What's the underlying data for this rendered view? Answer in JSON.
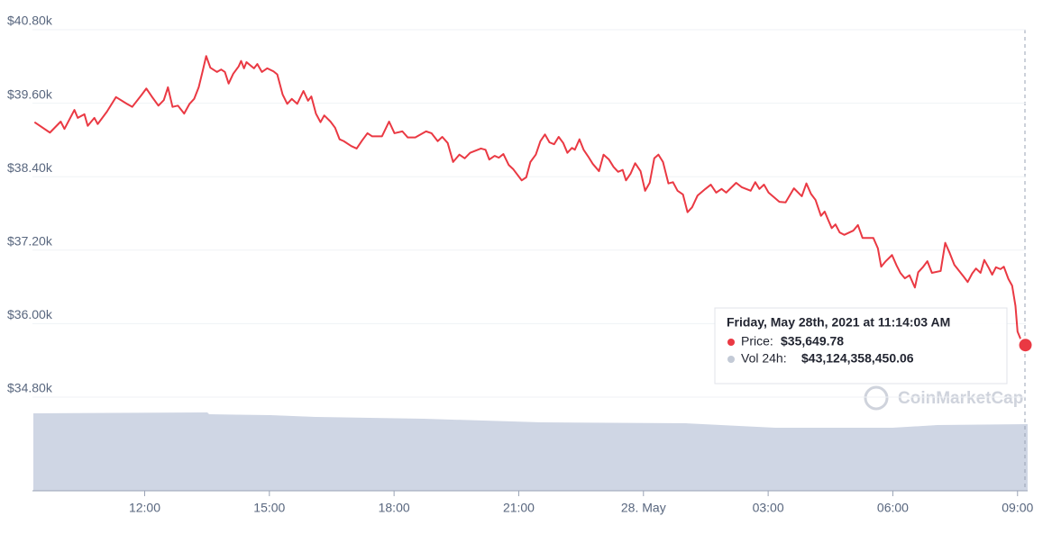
{
  "chart_data": {
    "type": "line",
    "color": "#ea3943",
    "x": [
      9.35,
      9.72,
      9.98,
      10.07,
      10.31,
      10.39,
      10.55,
      10.63,
      10.79,
      10.87,
      11.09,
      11.31,
      11.57,
      11.7,
      11.93,
      12.04,
      12.17,
      12.33,
      12.46,
      12.56,
      12.67,
      12.8,
      12.95,
      13.08,
      13.19,
      13.3,
      13.39,
      13.48,
      13.58,
      13.74,
      13.84,
      13.93,
      14.02,
      14.13,
      14.26,
      14.32,
      14.39,
      14.45,
      14.63,
      14.71,
      14.82,
      14.95,
      15.1,
      15.19,
      15.32,
      15.43,
      15.54,
      15.67,
      15.82,
      15.93,
      16.01,
      16.12,
      16.23,
      16.32,
      16.47,
      16.58,
      16.69,
      16.79,
      16.97,
      17.1,
      17.23,
      17.36,
      17.47,
      17.71,
      17.88,
      18.01,
      18.2,
      18.33,
      18.51,
      18.77,
      18.9,
      19.05,
      19.16,
      19.29,
      19.42,
      19.57,
      19.7,
      19.83,
      20.09,
      20.2,
      20.29,
      20.42,
      20.52,
      20.63,
      20.76,
      20.87,
      21.07,
      21.18,
      21.28,
      21.41,
      21.52,
      21.63,
      21.74,
      21.85,
      21.96,
      22.07,
      22.17,
      22.28,
      22.35,
      22.46,
      22.56,
      22.67,
      22.78,
      22.93,
      23.04,
      23.17,
      23.28,
      23.39,
      23.5,
      23.58,
      23.69,
      23.8,
      23.93,
      24.04,
      24.15,
      24.26,
      24.36,
      24.47,
      24.6,
      24.71,
      24.82,
      24.95,
      25.06,
      25.17,
      25.3,
      25.49,
      25.62,
      25.75,
      25.88,
      25.99,
      26.23,
      26.36,
      26.58,
      26.69,
      26.79,
      26.9,
      27.01,
      27.27,
      27.42,
      27.62,
      27.81,
      27.92,
      28.03,
      28.14,
      28.27,
      28.36,
      28.44,
      28.53,
      28.62,
      28.72,
      28.83,
      29.05,
      29.16,
      29.27,
      29.53,
      29.64,
      29.72,
      29.83,
      29.98,
      30.09,
      30.18,
      30.29,
      30.4,
      30.53,
      30.61,
      30.72,
      30.83,
      30.94,
      31.15,
      31.26,
      31.37,
      31.48,
      31.7,
      31.8,
      31.91,
      32.0,
      32.11,
      32.2,
      32.3,
      32.39,
      32.48,
      32.59,
      32.67,
      32.78,
      32.87,
      32.95,
      33.0,
      33.08,
      33.19
    ],
    "values": [
      39290,
      39120,
      39300,
      39180,
      39490,
      39360,
      39420,
      39230,
      39360,
      39260,
      39460,
      39700,
      39590,
      39540,
      39740,
      39840,
      39710,
      39560,
      39650,
      39860,
      39540,
      39560,
      39430,
      39590,
      39670,
      39860,
      40110,
      40370,
      40180,
      40110,
      40150,
      40110,
      39920,
      40080,
      40200,
      40290,
      40170,
      40270,
      40170,
      40240,
      40110,
      40170,
      40120,
      40070,
      39740,
      39590,
      39670,
      39590,
      39800,
      39640,
      39710,
      39430,
      39290,
      39400,
      39300,
      39200,
      39010,
      38980,
      38900,
      38860,
      38990,
      39110,
      39060,
      39060,
      39300,
      39110,
      39140,
      39040,
      39040,
      39140,
      39110,
      38980,
      39050,
      38950,
      38640,
      38760,
      38700,
      38790,
      38860,
      38840,
      38680,
      38740,
      38710,
      38770,
      38590,
      38520,
      38340,
      38390,
      38640,
      38760,
      38980,
      39090,
      38960,
      38930,
      39050,
      38950,
      38790,
      38870,
      38840,
      39010,
      38840,
      38730,
      38610,
      38490,
      38760,
      38680,
      38560,
      38480,
      38510,
      38340,
      38450,
      38620,
      38490,
      38170,
      38300,
      38700,
      38760,
      38640,
      38290,
      38310,
      38170,
      38110,
      37820,
      37900,
      38090,
      38200,
      38270,
      38140,
      38200,
      38140,
      38300,
      38230,
      38170,
      38310,
      38200,
      38270,
      38140,
      37990,
      37980,
      38210,
      38080,
      38290,
      38120,
      38020,
      37760,
      37830,
      37700,
      37560,
      37620,
      37490,
      37450,
      37520,
      37610,
      37400,
      37400,
      37230,
      36930,
      37020,
      37120,
      36950,
      36830,
      36740,
      36790,
      36590,
      36840,
      36920,
      37020,
      36830,
      36860,
      37320,
      37150,
      36960,
      36770,
      36680,
      36820,
      36900,
      36830,
      37040,
      36920,
      36800,
      36920,
      36890,
      36930,
      36730,
      36620,
      36290,
      35870,
      35740,
      35649.78
    ],
    "xlim": [
      9.3,
      33.2
    ],
    "xticks": [
      {
        "value": 12,
        "label": "12:00"
      },
      {
        "value": 15,
        "label": "15:00"
      },
      {
        "value": 18,
        "label": "18:00"
      },
      {
        "value": 21,
        "label": "21:00"
      },
      {
        "value": 24,
        "label": "28. May"
      },
      {
        "value": 27,
        "label": "03:00"
      },
      {
        "value": 30,
        "label": "06:00"
      },
      {
        "value": 33,
        "label": "09:00"
      }
    ],
    "ylim": [
      34800,
      40800
    ],
    "yticks": [
      {
        "value": 40800,
        "label": "$40.80k"
      },
      {
        "value": 39600,
        "label": "$39.60k"
      },
      {
        "value": 38400,
        "label": "$38.40k"
      },
      {
        "value": 37200,
        "label": "$37.20k"
      },
      {
        "value": 36000,
        "label": "$36.00k"
      },
      {
        "value": 34800,
        "label": "$34.80k"
      }
    ],
    "grid": true,
    "tooltip": {
      "date": "Friday, May 28th, 2021 at 11:14:03 AM",
      "price_label": "Price:",
      "price": "$35,649.78",
      "volume_label": "Vol 24h:",
      "volume": "$43,124,358,450.06"
    },
    "watermark": "CoinMarketCap"
  }
}
